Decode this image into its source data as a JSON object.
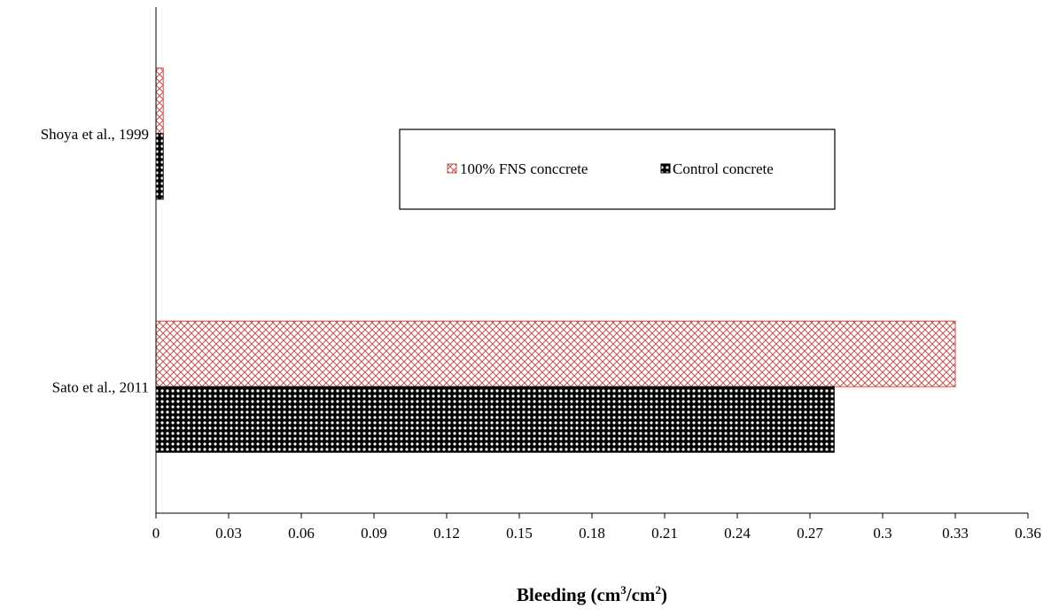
{
  "chart_data": {
    "type": "bar",
    "orientation": "horizontal",
    "categories": [
      "Shoya et al., 1999",
      "Sato et al., 2011"
    ],
    "series": [
      {
        "name": "100% FNS conccrete",
        "values": [
          0.003,
          0.33
        ],
        "color": "#c0504d",
        "pattern": "crosshatch"
      },
      {
        "name": "Control concrete",
        "values": [
          0.003,
          0.28
        ],
        "color": "#000000",
        "pattern": "dots"
      }
    ],
    "xlabel": {
      "base": "Bleeding (cm",
      "sup1": "3",
      "mid": "/cm",
      "sup2": "2",
      "end": ")"
    },
    "xlim": [
      0,
      0.36
    ],
    "xticks": [
      "0",
      "0.03",
      "0.06",
      "0.09",
      "0.12",
      "0.15",
      "0.18",
      "0.21",
      "0.24",
      "0.27",
      "0.3",
      "0.33",
      "0.36"
    ],
    "grid": false,
    "legend_position": "top-right"
  }
}
